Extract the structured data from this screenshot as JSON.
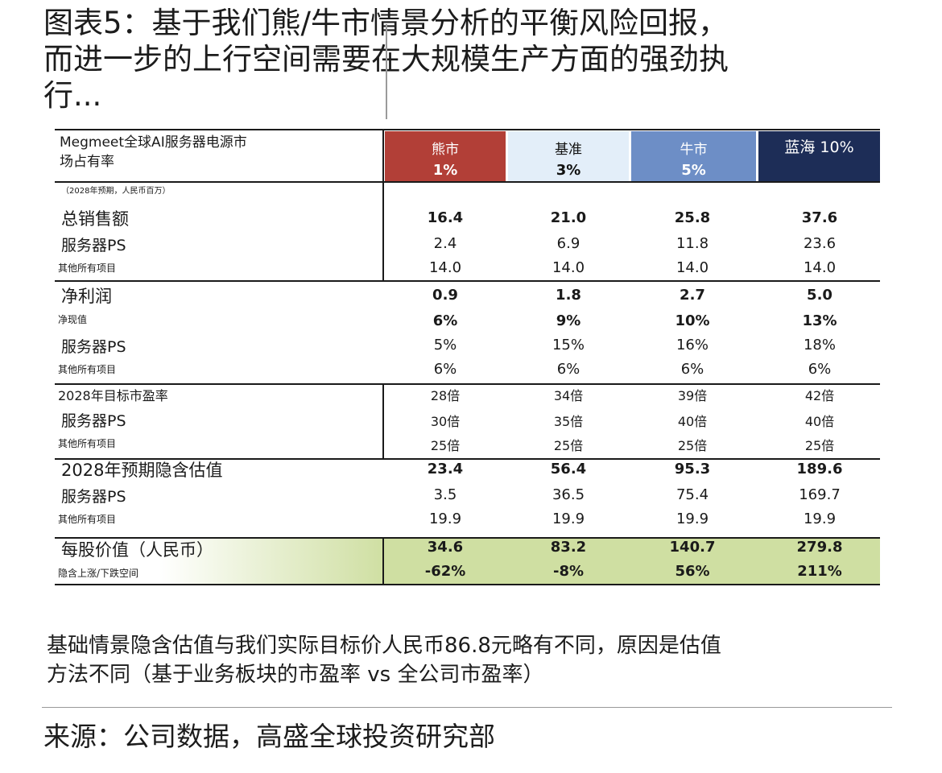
{
  "title_lines": [
    "图表5：基于我们熊/牛市情景分析的平衡风险回报，",
    "而进一步的上行空间需要在大规模生产方面的强劲执",
    "行..."
  ],
  "table": {
    "title_line1": "Megmeet全球AI服务器电源市",
    "title_line2": "场占有率",
    "note": "（2028年预期，人民币百万）",
    "scenarios": [
      {
        "name": "熊市",
        "pct": "1%",
        "color": "#b23f37"
      },
      {
        "name": "基准",
        "pct": "3%",
        "color": "#e3eef9"
      },
      {
        "name": "牛市",
        "pct": "5%",
        "color": "#6d8ec6"
      },
      {
        "name": "蓝海 10%",
        "pct": "",
        "color": "#1d2d57"
      }
    ],
    "rows": [
      {
        "label": "总销售额",
        "values": [
          "16.4",
          "21.0",
          "25.8",
          "37.6"
        ]
      },
      {
        "label": "服务器PS",
        "values": [
          "2.4",
          "6.9",
          "11.8",
          "23.6"
        ]
      },
      {
        "label": "其他所有项目",
        "values": [
          "14.0",
          "14.0",
          "14.0",
          "14.0"
        ]
      },
      {
        "label": "净利润",
        "values": [
          "0.9",
          "1.8",
          "2.7",
          "5.0"
        ]
      },
      {
        "label": "净现值",
        "values": [
          "6%",
          "9%",
          "10%",
          "13%"
        ]
      },
      {
        "label": "服务器PS",
        "values": [
          "5%",
          "15%",
          "16%",
          "18%"
        ]
      },
      {
        "label": "其他所有项目",
        "values": [
          "6%",
          "6%",
          "6%",
          "6%"
        ]
      },
      {
        "label": "2028年目标市盈率",
        "values": [
          "28倍",
          "34倍",
          "39倍",
          "42倍"
        ]
      },
      {
        "label": "服务器PS",
        "values": [
          "30倍",
          "35倍",
          "40倍",
          "40倍"
        ]
      },
      {
        "label": "其他所有项目",
        "values": [
          "25倍",
          "25倍",
          "25倍",
          "25倍"
        ]
      },
      {
        "label": "2028年预期隐含估值",
        "values": [
          "23.4",
          "56.4",
          "95.3",
          "189.6"
        ]
      },
      {
        "label": "服务器PS",
        "values": [
          "3.5",
          "36.5",
          "75.4",
          "169.7"
        ]
      },
      {
        "label": "其他所有项目",
        "values": [
          "19.9",
          "19.9",
          "19.9",
          "19.9"
        ]
      },
      {
        "label": "每股价值（人民币）",
        "values": [
          "34.6",
          "83.2",
          "140.7",
          "279.8"
        ]
      },
      {
        "label": "隐含上涨/下跌空间",
        "values": [
          "-62%",
          "-8%",
          "56%",
          "211%"
        ]
      }
    ]
  },
  "footnote_lines": [
    "基础情景隐含估值与我们实际目标价人民币86.8元略有不同，原因是估值",
    "方法不同（基于业务板块的市盈率 vs 全公司市盈率）"
  ],
  "source": "来源：公司数据，高盛全球投资研究部"
}
